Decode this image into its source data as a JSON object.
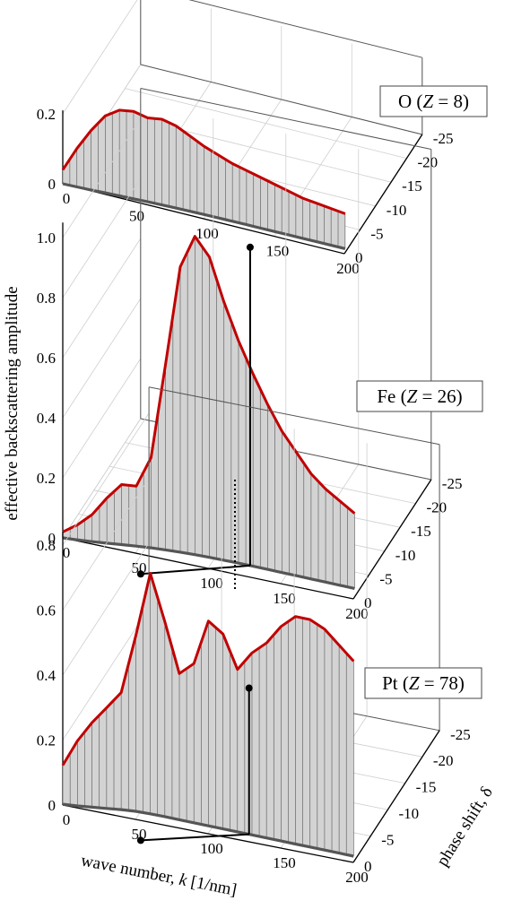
{
  "chart_data": {
    "type": "line",
    "title": "",
    "ylabel": "effective backscattering amplitude",
    "xlabel_parts": [
      "wave number, ",
      "k",
      " [1/nm]"
    ],
    "zlabel": "phase shift, δ",
    "x_ticks": [
      "0",
      "50",
      "100",
      "150",
      "200"
    ],
    "z_ticks": [
      "0",
      "-5",
      "-10",
      "-15",
      "-20",
      "-25"
    ],
    "xlim": [
      0,
      200
    ],
    "zlim": [
      0,
      -25
    ],
    "reference_k": 128,
    "panels": [
      {
        "label_element": "O",
        "label_z": "Z",
        "label_eq": " = 8)",
        "ylim": [
          0,
          0.2
        ],
        "y_ticks": [
          "0",
          "0.2"
        ],
        "reference_amplitude": null,
        "k": [
          0,
          10,
          20,
          30,
          40,
          50,
          60,
          70,
          80,
          90,
          100,
          110,
          120,
          130,
          140,
          150,
          160,
          170,
          180,
          190,
          200
        ],
        "amplitude": [
          0.04,
          0.11,
          0.17,
          0.22,
          0.245,
          0.25,
          0.24,
          0.245,
          0.235,
          0.215,
          0.195,
          0.18,
          0.165,
          0.155,
          0.145,
          0.135,
          0.125,
          0.115,
          0.11,
          0.105,
          0.1
        ],
        "phase_shift": [
          0,
          -0.5,
          -1.2,
          -2,
          -2.8,
          -3.5,
          -4.2,
          -4.8,
          -5.3,
          -5.7,
          -6,
          -6.2,
          -6.4,
          -6.5,
          -6.6,
          -6.7,
          -6.8,
          -6.9,
          -7,
          -7.1,
          -7.2
        ]
      },
      {
        "label_element": "Fe",
        "label_z": "Z",
        "label_eq": " = 26)",
        "ylim": [
          0,
          1
        ],
        "y_ticks": [
          "0",
          "0.2",
          "0.4",
          "0.6",
          "0.8",
          "1.0"
        ],
        "reference_amplitude": 1.06,
        "k": [
          0,
          10,
          20,
          30,
          40,
          50,
          60,
          70,
          80,
          90,
          100,
          110,
          120,
          130,
          140,
          150,
          160,
          170,
          180,
          190,
          200
        ],
        "amplitude": [
          0.02,
          0.05,
          0.09,
          0.15,
          0.2,
          0.2,
          0.3,
          0.62,
          0.95,
          1.06,
          1.0,
          0.86,
          0.74,
          0.64,
          0.55,
          0.47,
          0.41,
          0.35,
          0.31,
          0.28,
          0.25
        ],
        "phase_shift": [
          0,
          -0.8,
          -1.8,
          -3,
          -4.2,
          -5.4,
          -6.4,
          -7.2,
          -7.8,
          -8.2,
          -8.5,
          -8.6,
          -8.7,
          -8.7,
          -8.6,
          -8.5,
          -8.4,
          -8.3,
          -8.2,
          -8.1,
          -8
        ]
      },
      {
        "label_element": "Pt",
        "label_z": "Z",
        "label_eq": " = 78)",
        "ylim": [
          0,
          0.8
        ],
        "y_ticks": [
          "0",
          "0.2",
          "0.4",
          "0.6",
          "0.8"
        ],
        "reference_amplitude": 0.45,
        "k": [
          0,
          10,
          20,
          30,
          40,
          50,
          60,
          70,
          80,
          90,
          100,
          110,
          120,
          130,
          140,
          150,
          160,
          170,
          180,
          190,
          200
        ],
        "amplitude": [
          0.12,
          0.2,
          0.26,
          0.31,
          0.36,
          0.54,
          0.74,
          0.6,
          0.45,
          0.49,
          0.63,
          0.6,
          0.5,
          0.56,
          0.6,
          0.66,
          0.7,
          0.7,
          0.68,
          0.64,
          0.6
        ],
        "phase_shift": [
          -1,
          -2.5,
          -4.5,
          -6.5,
          -8.5,
          -10,
          -10.5,
          -10.5,
          -10.2,
          -10,
          -9.8,
          -9.6,
          -9.4,
          -9.2,
          -9,
          -8.8,
          -8.6,
          -8.4,
          -8.2,
          -8,
          -7.8
        ]
      }
    ]
  }
}
